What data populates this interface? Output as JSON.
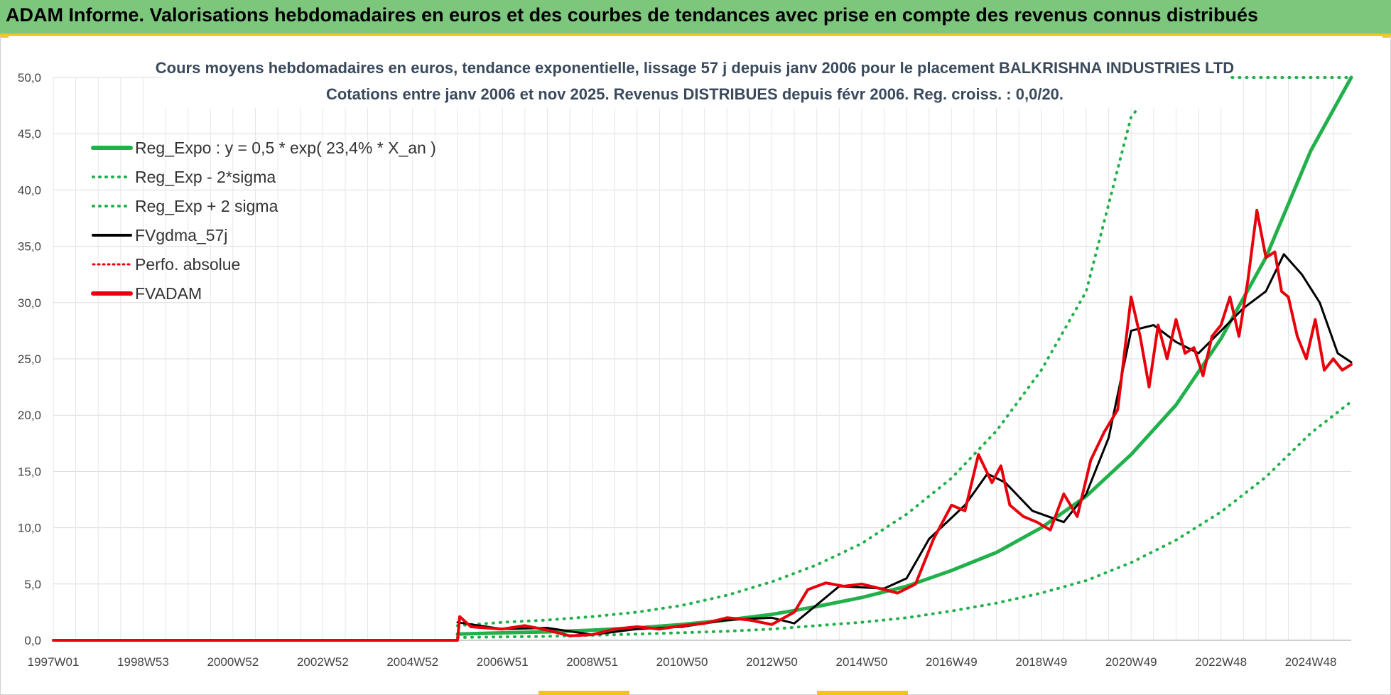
{
  "banner": {
    "title": "ADAM Informe. Valorisations hebdomadaires en euros et des courbes de tendances avec prise en compte des revenus connus distribués"
  },
  "colors": {
    "reg_expo": "#22b04b",
    "sigma": "#22b04b",
    "fv_gdma": "#000000",
    "perfo": "#e8000b",
    "fvadam": "#e8000b",
    "grid": "#dcdcdc",
    "banner": "#7dc77d"
  },
  "chart_data": {
    "type": "line",
    "title_line1": "Cours moyens hebdomadaires en euros, tendance exponentielle, lissage 57 j depuis janv 2006 pour le placement BALKRISHNA INDUSTRIES LTD",
    "title_line2": "Cotations entre janv 2006 et nov 2025. Revenus DISTRIBUES depuis févr 2006. Reg. croiss. : 0,0/20.",
    "x_range": [
      1997.0,
      2025.9
    ],
    "ylim": [
      0,
      50
    ],
    "y_ticks": [
      "0,0",
      "5,0",
      "10,0",
      "15,0",
      "20,0",
      "25,0",
      "30,0",
      "35,0",
      "40,0",
      "45,0",
      "50,0"
    ],
    "y_tick_values": [
      0,
      5,
      10,
      15,
      20,
      25,
      30,
      35,
      40,
      45,
      50
    ],
    "x_tick_labels": [
      "1997W01",
      "1998W53",
      "2000W52",
      "2002W52",
      "2004W52",
      "2006W51",
      "2008W51",
      "2010W50",
      "2012W50",
      "2014W50",
      "2016W49",
      "2018W49",
      "2020W49",
      "2022W48",
      "2024W48"
    ],
    "x_tick_values": [
      1997.0,
      1999.0,
      2001.0,
      2003.0,
      2005.0,
      2007.0,
      2009.0,
      2011.0,
      2013.0,
      2015.0,
      2017.0,
      2019.0,
      2021.0,
      2023.0,
      2025.0
    ],
    "legend": [
      {
        "label": "Reg_Expo : y = 0,5 * exp( 23,4% *  X_an )",
        "key": "reg_expo",
        "style": "solid-thick"
      },
      {
        "label": "Reg_Exp - 2*sigma",
        "key": "reg_minus",
        "style": "dotted"
      },
      {
        "label": "Reg_Exp + 2 sigma",
        "key": "reg_plus",
        "style": "dotted"
      },
      {
        "label": "FVgdma_57j",
        "key": "fv_gdma",
        "style": "solid"
      },
      {
        "label": "Perfo. absolue",
        "key": "perfo",
        "style": "dotted"
      },
      {
        "label": "FVADAM",
        "key": "fvadam",
        "style": "solid-thick"
      }
    ],
    "series": [
      {
        "name": "Reg_Expo",
        "x": [
          2006.0,
          2007.0,
          2008.0,
          2009.0,
          2010.0,
          2011.0,
          2012.0,
          2013.0,
          2014.0,
          2015.0,
          2016.0,
          2017.0,
          2018.0,
          2019.0,
          2020.0,
          2021.0,
          2022.0,
          2023.0,
          2024.0,
          2025.0,
          2025.9
        ],
        "y": [
          0.55,
          0.66,
          0.75,
          0.9,
          1.1,
          1.4,
          1.8,
          2.3,
          3.0,
          3.8,
          4.8,
          6.2,
          7.8,
          10.0,
          12.8,
          16.5,
          20.9,
          26.8,
          34.0,
          43.5,
          50.0
        ]
      },
      {
        "name": "Reg_Exp - 2*sigma",
        "x": [
          2006.0,
          2008.0,
          2010.0,
          2012.0,
          2013.0,
          2014.0,
          2015.0,
          2016.0,
          2017.0,
          2018.0,
          2019.0,
          2020.0,
          2021.0,
          2022.0,
          2023.0,
          2024.0,
          2025.0,
          2025.9
        ],
        "y": [
          0.25,
          0.35,
          0.55,
          0.8,
          1.0,
          1.3,
          1.6,
          2.0,
          2.6,
          3.3,
          4.2,
          5.3,
          6.9,
          8.9,
          11.4,
          14.5,
          18.4,
          21.2
        ]
      },
      {
        "name": "Reg_Exp + 2 sigma",
        "x": [
          2006.0,
          2007.0,
          2008.0,
          2009.0,
          2010.0,
          2011.0,
          2012.0,
          2013.0,
          2014.0,
          2015.0,
          2016.0,
          2017.0,
          2018.0,
          2019.0,
          2020.0,
          2021.0,
          2021.1
        ],
        "y": [
          1.3,
          1.6,
          1.8,
          2.1,
          2.5,
          3.1,
          4.0,
          5.2,
          6.7,
          8.6,
          11.2,
          14.4,
          18.6,
          24.0,
          31.0,
          46.5,
          47.0
        ]
      },
      {
        "name": "Reg_Exp + 2 sigma (cap)",
        "x": [
          2022.3,
          2025.9
        ],
        "y": [
          50.0,
          50.0
        ]
      },
      {
        "name": "FVgdma_57j",
        "x": [
          2006.0,
          2007.0,
          2008.0,
          2009.0,
          2010.0,
          2011.0,
          2012.0,
          2013.0,
          2013.5,
          2014.5,
          2015.5,
          2016.0,
          2016.5,
          2017.3,
          2017.8,
          2018.2,
          2018.8,
          2019.5,
          2020.0,
          2020.5,
          2021.0,
          2021.5,
          2022.0,
          2022.5,
          2023.0,
          2023.5,
          2024.0,
          2024.4,
          2024.8,
          2025.2,
          2025.6,
          2025.9
        ],
        "y": [
          1.6,
          1.0,
          1.1,
          0.5,
          1.0,
          1.2,
          1.8,
          2.0,
          1.5,
          4.8,
          4.6,
          5.5,
          9.0,
          12.0,
          14.8,
          14.0,
          11.5,
          10.5,
          13.0,
          18.0,
          27.5,
          28.0,
          26.5,
          25.5,
          27.5,
          29.5,
          31.0,
          34.3,
          32.5,
          30.0,
          25.5,
          24.7
        ]
      },
      {
        "name": "FVADAM",
        "x": [
          1997.0,
          2006.0,
          2006.05,
          2006.3,
          2007.0,
          2007.5,
          2008.0,
          2008.5,
          2009.0,
          2009.5,
          2010.0,
          2010.5,
          2011.0,
          2011.5,
          2012.0,
          2012.5,
          2013.0,
          2013.5,
          2013.8,
          2014.2,
          2014.6,
          2015.0,
          2015.4,
          2015.8,
          2016.2,
          2016.6,
          2017.0,
          2017.3,
          2017.6,
          2017.9,
          2018.1,
          2018.3,
          2018.6,
          2018.9,
          2019.2,
          2019.5,
          2019.8,
          2020.1,
          2020.4,
          2020.7,
          2021.0,
          2021.2,
          2021.4,
          2021.6,
          2021.8,
          2022.0,
          2022.2,
          2022.4,
          2022.6,
          2022.8,
          2023.0,
          2023.2,
          2023.4,
          2023.6,
          2023.8,
          2024.0,
          2024.2,
          2024.35,
          2024.5,
          2024.7,
          2024.9,
          2025.1,
          2025.3,
          2025.5,
          2025.7,
          2025.9
        ],
        "y": [
          0.0,
          0.0,
          2.1,
          1.2,
          1.0,
          1.3,
          0.9,
          0.4,
          0.5,
          1.0,
          1.2,
          1.0,
          1.3,
          1.5,
          2.0,
          1.8,
          1.4,
          2.5,
          4.5,
          5.1,
          4.8,
          5.0,
          4.6,
          4.2,
          5.0,
          9.0,
          12.0,
          11.5,
          16.5,
          14.0,
          15.5,
          12.0,
          11.0,
          10.5,
          9.8,
          13.0,
          11.0,
          16.0,
          18.5,
          20.5,
          30.5,
          27.0,
          22.5,
          28.0,
          25.0,
          28.5,
          25.5,
          26.0,
          23.5,
          27.0,
          28.0,
          30.5,
          27.0,
          32.0,
          38.2,
          34.0,
          34.5,
          31.0,
          30.5,
          27.0,
          25.0,
          28.5,
          24.0,
          25.0,
          24.0,
          24.5
        ]
      }
    ]
  }
}
